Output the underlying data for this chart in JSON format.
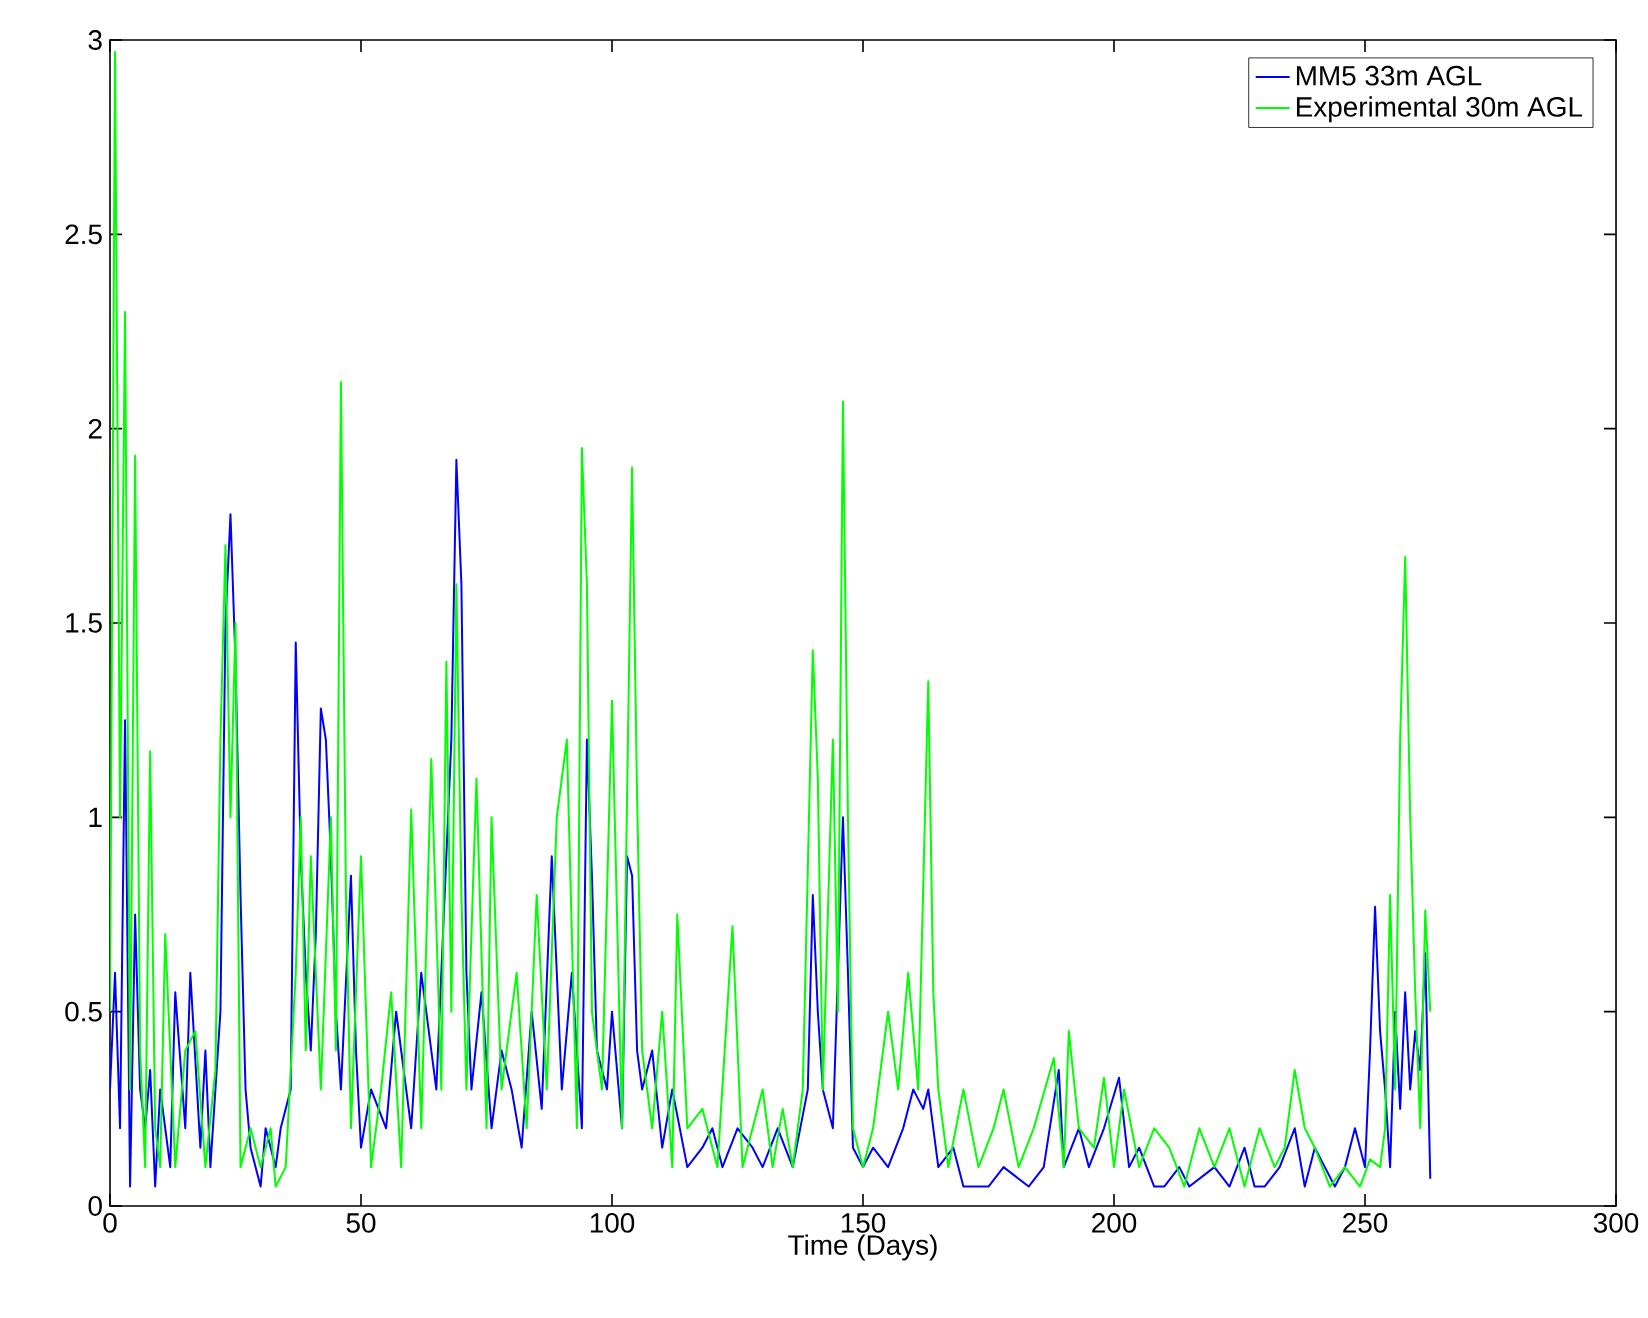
{
  "chart_data": {
    "type": "line",
    "xlabel": "Time (Days)",
    "xlim": [
      0,
      300
    ],
    "ylim": [
      0,
      3
    ],
    "xticks": [
      0,
      50,
      100,
      150,
      200,
      250,
      300
    ],
    "yticks": [
      0,
      0.5,
      1,
      1.5,
      2,
      2.5,
      3
    ],
    "grid": false,
    "legend": "top right",
    "line_style": "solid",
    "marker": "none",
    "series": [
      {
        "name": "MM5 33m AGL",
        "color": "#0000ff",
        "x": [
          0,
          1,
          2,
          3,
          4,
          5,
          6,
          7,
          8,
          9,
          10,
          12,
          13,
          15,
          16,
          18,
          19,
          20,
          22,
          23,
          24,
          25,
          26,
          27,
          28,
          30,
          31,
          33,
          34,
          36,
          37,
          38,
          39,
          40,
          41,
          42,
          43,
          44,
          45,
          46,
          48,
          49,
          50,
          52,
          55,
          57,
          60,
          62,
          65,
          67,
          68,
          69,
          70,
          71,
          72,
          74,
          76,
          78,
          80,
          82,
          84,
          86,
          88,
          90,
          92,
          94,
          95,
          96,
          97,
          99,
          100,
          102,
          103,
          104,
          105,
          106,
          108,
          110,
          112,
          115,
          118,
          120,
          122,
          125,
          128,
          130,
          133,
          136,
          139,
          140,
          141,
          142,
          144,
          146,
          147,
          148,
          150,
          152,
          155,
          158,
          160,
          162,
          163,
          165,
          168,
          170,
          175,
          178,
          180,
          183,
          186,
          189,
          190,
          193,
          195,
          198,
          201,
          203,
          205,
          208,
          210,
          213,
          215,
          218,
          220,
          223,
          226,
          228,
          230,
          233,
          236,
          238,
          240,
          242,
          244,
          246,
          248,
          250,
          251,
          252,
          253,
          254,
          255,
          256,
          257,
          258,
          259,
          260,
          261,
          262,
          263
        ],
        "values": [
          0.3,
          0.6,
          0.2,
          1.25,
          0.05,
          0.75,
          0.3,
          0.2,
          0.35,
          0.05,
          0.3,
          0.1,
          0.55,
          0.2,
          0.6,
          0.15,
          0.4,
          0.1,
          0.5,
          1.5,
          1.78,
          1.4,
          0.8,
          0.3,
          0.15,
          0.05,
          0.2,
          0.1,
          0.2,
          0.3,
          1.45,
          0.9,
          0.6,
          0.4,
          0.7,
          1.28,
          1.2,
          0.9,
          0.5,
          0.3,
          0.85,
          0.4,
          0.15,
          0.3,
          0.2,
          0.5,
          0.2,
          0.6,
          0.3,
          0.9,
          1.2,
          1.92,
          1.6,
          0.6,
          0.3,
          0.55,
          0.2,
          0.4,
          0.3,
          0.15,
          0.5,
          0.25,
          0.9,
          0.3,
          0.6,
          0.2,
          1.2,
          0.85,
          0.4,
          0.3,
          0.5,
          0.2,
          0.9,
          0.85,
          0.4,
          0.3,
          0.4,
          0.15,
          0.3,
          0.1,
          0.15,
          0.2,
          0.1,
          0.2,
          0.15,
          0.1,
          0.2,
          0.1,
          0.3,
          0.8,
          0.5,
          0.3,
          0.2,
          1.0,
          0.6,
          0.15,
          0.1,
          0.15,
          0.1,
          0.2,
          0.3,
          0.25,
          0.3,
          0.1,
          0.15,
          0.05,
          0.05,
          0.1,
          0.08,
          0.05,
          0.1,
          0.35,
          0.1,
          0.2,
          0.1,
          0.2,
          0.33,
          0.1,
          0.15,
          0.05,
          0.05,
          0.1,
          0.05,
          0.08,
          0.1,
          0.05,
          0.15,
          0.05,
          0.05,
          0.1,
          0.2,
          0.05,
          0.15,
          0.1,
          0.05,
          0.1,
          0.2,
          0.1,
          0.4,
          0.77,
          0.45,
          0.3,
          0.1,
          0.5,
          0.25,
          0.55,
          0.3,
          0.45,
          0.35,
          0.65,
          0.07
        ]
      },
      {
        "name": "Experimental 30m AGL",
        "color": "#00ff00",
        "x": [
          0,
          1,
          2,
          3,
          4,
          5,
          6,
          7,
          8,
          9,
          10,
          11,
          13,
          15,
          17,
          19,
          21,
          22,
          23,
          24,
          25,
          26,
          28,
          30,
          32,
          33,
          35,
          37,
          38,
          39,
          40,
          42,
          44,
          45,
          46,
          47,
          48,
          50,
          52,
          54,
          56,
          58,
          60,
          62,
          64,
          66,
          67,
          68,
          69,
          70,
          71,
          73,
          75,
          76,
          78,
          81,
          83,
          85,
          87,
          89,
          91,
          93,
          94,
          95,
          96,
          98,
          100,
          102,
          104,
          105,
          106,
          108,
          110,
          112,
          113,
          115,
          118,
          121,
          124,
          126,
          128,
          130,
          132,
          134,
          136,
          138,
          140,
          141,
          142,
          144,
          145,
          146,
          147,
          148,
          150,
          152,
          155,
          157,
          159,
          161,
          163,
          164,
          165,
          167,
          170,
          173,
          176,
          178,
          181,
          184,
          188,
          190,
          191,
          193,
          196,
          198,
          200,
          202,
          205,
          208,
          211,
          214,
          217,
          220,
          223,
          226,
          229,
          232,
          234,
          236,
          238,
          240,
          243,
          246,
          249,
          251,
          253,
          254,
          255,
          256,
          257,
          258,
          259,
          260,
          261,
          262,
          263
        ],
        "values": [
          0.5,
          2.97,
          1.0,
          2.3,
          0.3,
          1.93,
          0.4,
          0.1,
          1.17,
          0.2,
          0.1,
          0.7,
          0.1,
          0.4,
          0.45,
          0.1,
          0.35,
          1.2,
          1.7,
          1.0,
          1.5,
          0.1,
          0.2,
          0.1,
          0.2,
          0.05,
          0.1,
          0.6,
          1.0,
          0.4,
          0.9,
          0.3,
          1.0,
          0.4,
          2.12,
          0.8,
          0.2,
          0.9,
          0.1,
          0.3,
          0.55,
          0.1,
          1.02,
          0.2,
          1.15,
          0.3,
          1.4,
          0.5,
          1.6,
          0.8,
          0.3,
          1.1,
          0.2,
          1.0,
          0.3,
          0.6,
          0.2,
          0.8,
          0.3,
          1.0,
          1.2,
          0.2,
          1.95,
          1.6,
          0.5,
          0.3,
          1.3,
          0.2,
          1.9,
          1.05,
          0.4,
          0.2,
          0.5,
          0.1,
          0.75,
          0.2,
          0.25,
          0.1,
          0.72,
          0.1,
          0.2,
          0.3,
          0.1,
          0.25,
          0.1,
          0.3,
          1.43,
          1.1,
          0.3,
          1.2,
          0.5,
          2.07,
          1.0,
          0.2,
          0.1,
          0.2,
          0.5,
          0.3,
          0.6,
          0.3,
          1.35,
          0.55,
          0.3,
          0.1,
          0.3,
          0.1,
          0.2,
          0.3,
          0.1,
          0.2,
          0.38,
          0.1,
          0.45,
          0.2,
          0.15,
          0.33,
          0.1,
          0.3,
          0.1,
          0.2,
          0.15,
          0.05,
          0.2,
          0.1,
          0.2,
          0.05,
          0.2,
          0.1,
          0.15,
          0.35,
          0.2,
          0.15,
          0.05,
          0.1,
          0.05,
          0.12,
          0.1,
          0.2,
          0.8,
          0.3,
          1.2,
          1.67,
          1.0,
          0.55,
          0.2,
          0.76,
          0.5
        ]
      }
    ]
  }
}
